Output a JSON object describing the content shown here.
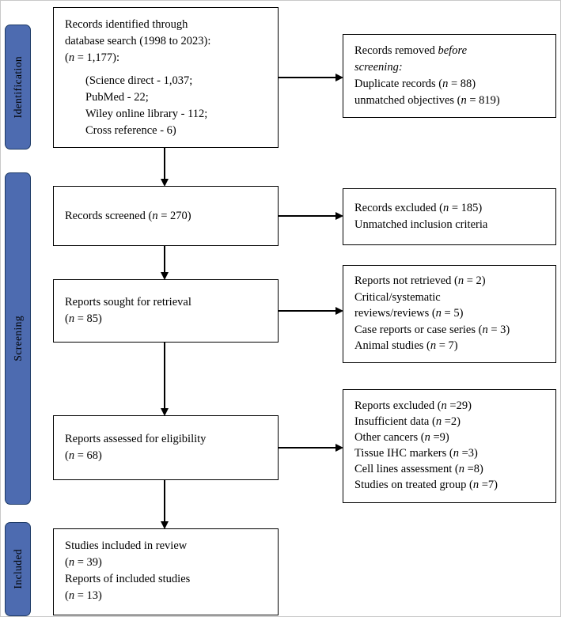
{
  "figure": {
    "kind": "study-selection-flow-diagram"
  },
  "stages": [
    {
      "label": "Identification"
    },
    {
      "label": "Screening"
    },
    {
      "label": "Included"
    }
  ],
  "main": {
    "identified": {
      "lines": [
        "Records identified through",
        "database search (1998 to 2023):",
        "(*n* = 1,177):"
      ],
      "sources": [
        "(Science direct - 1,037;",
        "PubMed - 22;",
        "Wiley online library - 112;",
        "Cross reference - 6)"
      ]
    },
    "screened": {
      "lines": [
        "Records screened (*n* = 270)"
      ]
    },
    "sought": {
      "lines": [
        "Reports sought for retrieval",
        "(*n* = 85)"
      ]
    },
    "assessed": {
      "lines": [
        "Reports assessed for eligibility",
        "(*n* = 68)"
      ]
    },
    "included": {
      "lines": [
        "Studies included in review",
        "(*n* = 39)",
        "Reports of included studies",
        "(*n* = 13)"
      ]
    }
  },
  "exclusions": {
    "removed_before_screening": {
      "lines": [
        "Records removed *before*",
        "*screening:*",
        "Duplicate records (*n* = 88)",
        "unmatched objectives (*n* = 819)"
      ]
    },
    "records_excluded": {
      "lines": [
        "Records excluded (*n* = 185)",
        "Unmatched inclusion criteria"
      ]
    },
    "reports_not_retrieved": {
      "lines": [
        "Reports not retrieved (*n* = 2)",
        "Critical/systematic",
        "reviews/reviews (*n* = 5)",
        "Case reports or case series (*n* = 3)",
        "Animal studies (*n* = 7)"
      ]
    },
    "reports_excluded": {
      "lines": [
        "Reports excluded (*n* =29)",
        "Insufficient data (*n* =2)",
        "Other cancers (*n* =9)",
        "Tissue IHC markers (*n* =3)",
        "Cell lines assessment (*n* =8)",
        "Studies on treated group (*n* =7)"
      ]
    }
  },
  "colors": {
    "stage_fill": "#4d6bb0",
    "stage_border": "#1d3a66",
    "box_border": "#000000",
    "arrow": "#000000"
  }
}
